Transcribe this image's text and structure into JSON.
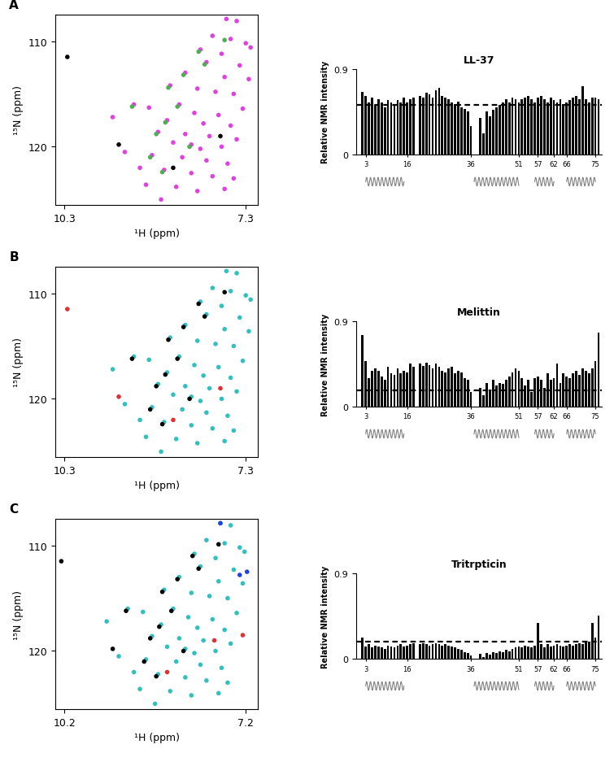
{
  "chart_data": [
    {
      "type": "scatter",
      "panel": "A",
      "xlabel": "¹H (ppm)",
      "ylabel": "¹⁵N (ppm)",
      "xlim": [
        10.45,
        7.1
      ],
      "xticks": [
        10.3,
        7.3
      ],
      "ylim": [
        125.5,
        107.5
      ],
      "yticks": [
        110,
        120
      ],
      "series": [
        {
          "color": "#e040e0",
          "marker": "o",
          "x": [
            7.62,
            7.45,
            7.85,
            7.55,
            7.3,
            7.22,
            8.05,
            7.7,
            7.95,
            7.4,
            8.3,
            7.65,
            7.25,
            8.55,
            8.1,
            7.8,
            7.5,
            9.15,
            8.9,
            8.4,
            7.35,
            8.15,
            7.75,
            9.5,
            8.6,
            8.0,
            7.55,
            8.75,
            8.3,
            7.9,
            7.45,
            8.5,
            8.2,
            8.05,
            7.7,
            9.3,
            8.85,
            8.35,
            7.95,
            7.6,
            9.05,
            8.65,
            8.2,
            7.85,
            7.5,
            8.95,
            8.45,
            8.1,
            7.65,
            8.7
          ],
          "y": [
            107.9,
            108.1,
            109.5,
            109.8,
            110.2,
            110.6,
            110.8,
            111.2,
            112.0,
            112.3,
            113.0,
            113.4,
            113.6,
            114.2,
            114.5,
            114.8,
            115.0,
            116.0,
            116.3,
            116.0,
            116.4,
            116.8,
            117.0,
            117.2,
            117.5,
            117.8,
            118.0,
            118.6,
            118.8,
            119.0,
            119.3,
            119.6,
            119.8,
            120.2,
            120.0,
            120.5,
            120.8,
            121.0,
            121.3,
            121.6,
            122.0,
            122.2,
            122.5,
            122.8,
            123.0,
            123.6,
            123.8,
            124.2,
            124.0,
            125.0
          ]
        },
        {
          "color": "#4caf50",
          "marker": "o",
          "x": [
            7.65,
            8.08,
            7.98,
            8.33,
            8.58,
            9.18,
            8.43,
            8.63,
            8.78,
            8.23,
            8.88,
            8.68
          ],
          "y": [
            109.9,
            111.0,
            112.2,
            113.2,
            114.4,
            116.2,
            116.2,
            117.7,
            118.8,
            120.0,
            121.0,
            122.4
          ]
        },
        {
          "color": "#000000",
          "marker": "o",
          "x": [
            10.25,
            8.5,
            7.72,
            9.4
          ],
          "y": [
            111.5,
            122.0,
            119.0,
            119.8
          ]
        }
      ]
    },
    {
      "type": "bar",
      "title": "LL-37",
      "ylabel": "Relative NMR intensity",
      "color": "#000000",
      "xlim": [
        0,
        77
      ],
      "xticks": [
        3,
        16,
        36,
        51,
        57,
        62,
        66,
        75
      ],
      "ylim": [
        0,
        0.9
      ],
      "yticks": [
        0,
        0.9
      ],
      "dashed_line": 0.52,
      "secondary_structure": [
        [
          3,
          15
        ],
        [
          37,
          51
        ],
        [
          56,
          62
        ],
        [
          66,
          75
        ]
      ],
      "x": [
        1,
        2,
        3,
        4,
        5,
        6,
        7,
        8,
        9,
        10,
        11,
        12,
        13,
        14,
        15,
        16,
        17,
        18,
        19,
        20,
        21,
        22,
        23,
        24,
        25,
        26,
        27,
        28,
        29,
        30,
        31,
        32,
        33,
        34,
        35,
        36,
        37,
        38,
        39,
        40,
        41,
        42,
        43,
        44,
        45,
        46,
        47,
        48,
        49,
        50,
        51,
        52,
        53,
        54,
        55,
        56,
        57,
        58,
        59,
        60,
        61,
        62,
        63,
        64,
        65,
        66,
        67,
        68,
        69,
        70,
        71,
        72,
        73,
        74,
        75,
        76
      ],
      "values": [
        null,
        0.66,
        0.62,
        0.55,
        0.6,
        0.52,
        0.58,
        0.55,
        0.5,
        0.57,
        0.55,
        0.53,
        0.57,
        0.55,
        0.6,
        0.55,
        0.58,
        0.6,
        null,
        0.62,
        0.6,
        0.65,
        0.63,
        0.6,
        0.68,
        0.7,
        0.62,
        0.6,
        0.58,
        0.55,
        0.53,
        0.56,
        0.5,
        0.48,
        0.45,
        0.3,
        null,
        null,
        0.38,
        0.22,
        0.45,
        0.4,
        0.47,
        0.5,
        0.52,
        0.55,
        0.58,
        0.55,
        0.6,
        0.58,
        0.55,
        0.58,
        0.6,
        0.62,
        0.58,
        0.55,
        0.6,
        0.62,
        0.58,
        0.55,
        0.6,
        0.57,
        0.55,
        0.58,
        0.53,
        0.55,
        0.57,
        0.6,
        0.62,
        0.58,
        0.72,
        0.58,
        0.55,
        0.6,
        0.6,
        0.58
      ]
    },
    {
      "type": "scatter",
      "panel": "B",
      "xlabel": "¹H (ppm)",
      "ylabel": "¹⁵N (ppm)",
      "xlim": [
        10.45,
        7.1
      ],
      "xticks": [
        10.3,
        7.3
      ],
      "ylim": [
        125.5,
        107.5
      ],
      "yticks": [
        110,
        120
      ],
      "series": [
        {
          "color": "#30c0c0",
          "marker": "o",
          "x": [
            7.62,
            7.45,
            7.85,
            7.55,
            7.3,
            7.22,
            8.05,
            7.7,
            7.95,
            7.4,
            8.3,
            7.65,
            7.25,
            8.55,
            8.1,
            7.8,
            7.5,
            9.15,
            8.9,
            8.4,
            7.35,
            8.15,
            7.75,
            9.5,
            8.6,
            8.0,
            7.55,
            8.75,
            8.3,
            7.9,
            7.45,
            8.5,
            8.2,
            8.05,
            7.7,
            9.3,
            8.85,
            8.35,
            7.95,
            7.6,
            9.05,
            8.65,
            8.2,
            7.85,
            7.5,
            8.95,
            8.45,
            8.1,
            7.65,
            8.7
          ],
          "y": [
            107.9,
            108.1,
            109.5,
            109.8,
            110.2,
            110.6,
            110.8,
            111.2,
            112.0,
            112.3,
            113.0,
            113.4,
            113.6,
            114.2,
            114.5,
            114.8,
            115.0,
            116.0,
            116.3,
            116.0,
            116.4,
            116.8,
            117.0,
            117.2,
            117.5,
            117.8,
            118.0,
            118.6,
            118.8,
            119.0,
            119.3,
            119.6,
            119.8,
            120.2,
            120.0,
            120.5,
            120.8,
            121.0,
            121.3,
            121.6,
            122.0,
            122.2,
            122.5,
            122.8,
            123.0,
            123.6,
            123.8,
            124.2,
            124.0,
            125.0
          ]
        },
        {
          "color": "#000000",
          "marker": "o",
          "x": [
            7.65,
            8.08,
            7.98,
            8.33,
            8.58,
            9.18,
            8.43,
            8.63,
            8.78,
            8.23,
            8.88,
            8.68
          ],
          "y": [
            109.9,
            111.0,
            112.2,
            113.2,
            114.4,
            116.2,
            116.2,
            117.7,
            118.8,
            120.0,
            121.0,
            122.4
          ]
        },
        {
          "color": "#e03030",
          "marker": "o",
          "x": [
            10.25,
            8.5,
            7.72,
            9.4
          ],
          "y": [
            111.5,
            122.0,
            119.0,
            119.8
          ]
        }
      ]
    },
    {
      "type": "bar",
      "title": "Melittin",
      "ylabel": "Relative NMR intensity",
      "color": "#000000",
      "xlim": [
        0,
        77
      ],
      "xticks": [
        3,
        16,
        36,
        51,
        57,
        62,
        66,
        75
      ],
      "ylim": [
        0,
        0.9
      ],
      "yticks": [
        0,
        0.9
      ],
      "dashed_line": 0.17,
      "secondary_structure": [
        [
          3,
          15
        ],
        [
          37,
          51
        ],
        [
          56,
          62
        ],
        [
          66,
          75
        ]
      ],
      "x": [
        1,
        2,
        3,
        4,
        5,
        6,
        7,
        8,
        9,
        10,
        11,
        12,
        13,
        14,
        15,
        16,
        17,
        18,
        19,
        20,
        21,
        22,
        23,
        24,
        25,
        26,
        27,
        28,
        29,
        30,
        31,
        32,
        33,
        34,
        35,
        36,
        37,
        38,
        39,
        40,
        41,
        42,
        43,
        44,
        45,
        46,
        47,
        48,
        49,
        50,
        51,
        52,
        53,
        54,
        55,
        56,
        57,
        58,
        59,
        60,
        61,
        62,
        63,
        64,
        65,
        66,
        67,
        68,
        69,
        70,
        71,
        72,
        73,
        74,
        75,
        76
      ],
      "values": [
        null,
        0.75,
        0.48,
        0.3,
        0.38,
        0.4,
        0.38,
        0.32,
        0.28,
        0.42,
        0.35,
        0.33,
        0.4,
        0.35,
        0.38,
        0.36,
        0.45,
        0.42,
        null,
        0.45,
        0.43,
        0.46,
        0.44,
        0.4,
        0.45,
        0.42,
        0.38,
        0.36,
        0.4,
        0.42,
        0.35,
        0.38,
        0.36,
        0.3,
        0.28,
        0.15,
        null,
        null,
        0.2,
        0.12,
        0.25,
        0.18,
        0.28,
        0.22,
        0.25,
        0.24,
        0.28,
        0.32,
        0.36,
        0.4,
        0.38,
        0.3,
        0.22,
        0.28,
        0.15,
        0.3,
        0.32,
        0.28,
        0.2,
        0.35,
        0.28,
        0.3,
        0.45,
        0.25,
        0.35,
        0.32,
        0.3,
        0.35,
        0.38,
        0.33,
        0.4,
        0.38,
        0.35,
        0.4,
        0.48,
        0.78
      ]
    },
    {
      "type": "scatter",
      "panel": "C",
      "xlabel": "¹H (ppm)",
      "ylabel": "¹⁵N (ppm)",
      "xlim": [
        10.35,
        7.0
      ],
      "xticks": [
        10.2,
        7.2
      ],
      "ylim": [
        125.5,
        107.5
      ],
      "yticks": [
        110,
        120
      ],
      "series": [
        {
          "color": "#30c0c0",
          "marker": "o",
          "x": [
            7.62,
            7.45,
            7.85,
            7.55,
            7.3,
            7.22,
            8.05,
            7.7,
            7.95,
            7.4,
            8.3,
            7.65,
            7.25,
            8.55,
            8.1,
            7.8,
            7.5,
            9.15,
            8.9,
            8.4,
            7.35,
            8.15,
            7.75,
            9.5,
            8.6,
            8.0,
            7.55,
            8.75,
            8.3,
            7.9,
            7.45,
            8.5,
            8.2,
            8.05,
            7.7,
            9.3,
            8.85,
            8.35,
            7.95,
            7.6,
            9.05,
            8.65,
            8.2,
            7.85,
            7.5,
            8.95,
            8.45,
            8.1,
            7.65,
            8.7
          ],
          "y": [
            107.9,
            108.1,
            109.5,
            109.8,
            110.2,
            110.6,
            110.8,
            111.2,
            112.0,
            112.3,
            113.0,
            113.4,
            113.6,
            114.2,
            114.5,
            114.8,
            115.0,
            116.0,
            116.3,
            116.0,
            116.4,
            116.8,
            117.0,
            117.2,
            117.5,
            117.8,
            118.0,
            118.6,
            118.8,
            119.0,
            119.3,
            119.6,
            119.8,
            120.2,
            120.0,
            120.5,
            120.8,
            121.0,
            121.3,
            121.6,
            122.0,
            122.2,
            122.5,
            122.8,
            123.0,
            123.6,
            123.8,
            124.2,
            124.0,
            125.0
          ]
        },
        {
          "color": "#000000",
          "marker": "o",
          "x": [
            7.65,
            8.08,
            7.98,
            8.33,
            8.58,
            9.18,
            8.43,
            8.63,
            8.78,
            8.23,
            8.88,
            8.68,
            10.25,
            9.4
          ],
          "y": [
            109.9,
            111.0,
            112.2,
            113.2,
            114.4,
            116.2,
            116.2,
            117.7,
            118.8,
            120.0,
            121.0,
            122.4,
            111.5,
            119.8
          ]
        },
        {
          "color": "#2040e0",
          "marker": "o",
          "x": [
            7.62,
            7.18,
            7.3
          ],
          "y": [
            107.9,
            112.5,
            112.8
          ]
        },
        {
          "color": "#e03030",
          "marker": "o",
          "x": [
            8.5,
            7.72,
            7.25
          ],
          "y": [
            122.0,
            119.0,
            118.5
          ]
        }
      ]
    },
    {
      "type": "bar",
      "title": "Tritrpticin",
      "ylabel": "Relative NMR intensity",
      "color": "#000000",
      "xlim": [
        0,
        77
      ],
      "xticks": [
        3,
        16,
        36,
        51,
        57,
        62,
        66,
        75
      ],
      "ylim": [
        0,
        0.9
      ],
      "yticks": [
        0,
        0.9
      ],
      "dashed_line": 0.18,
      "secondary_structure": [
        [
          3,
          15
        ],
        [
          37,
          51
        ],
        [
          56,
          62
        ],
        [
          66,
          75
        ]
      ],
      "x": [
        1,
        2,
        3,
        4,
        5,
        6,
        7,
        8,
        9,
        10,
        11,
        12,
        13,
        14,
        15,
        16,
        17,
        18,
        19,
        20,
        21,
        22,
        23,
        24,
        25,
        26,
        27,
        28,
        29,
        30,
        31,
        32,
        33,
        34,
        35,
        36,
        37,
        38,
        39,
        40,
        41,
        42,
        43,
        44,
        45,
        46,
        47,
        48,
        49,
        50,
        51,
        52,
        53,
        54,
        55,
        56,
        57,
        58,
        59,
        60,
        61,
        62,
        63,
        64,
        65,
        66,
        67,
        68,
        69,
        70,
        71,
        72,
        73,
        74,
        75,
        76
      ],
      "values": [
        null,
        0.22,
        0.13,
        0.15,
        0.12,
        0.14,
        0.13,
        0.12,
        0.1,
        0.14,
        0.13,
        0.12,
        0.14,
        0.15,
        0.13,
        0.14,
        0.15,
        0.16,
        null,
        0.15,
        0.16,
        0.15,
        0.14,
        0.15,
        0.16,
        0.15,
        0.14,
        0.15,
        0.14,
        0.13,
        0.12,
        0.1,
        0.09,
        0.07,
        0.06,
        0.03,
        null,
        null,
        0.05,
        0.02,
        0.06,
        0.04,
        0.07,
        0.06,
        0.08,
        0.07,
        0.09,
        0.08,
        0.1,
        0.12,
        0.13,
        0.12,
        0.14,
        0.13,
        0.12,
        0.14,
        0.38,
        0.15,
        0.12,
        0.15,
        0.13,
        0.14,
        0.15,
        0.14,
        0.13,
        0.14,
        0.15,
        0.14,
        0.15,
        0.16,
        0.15,
        0.17,
        0.18,
        0.38,
        0.22,
        0.45
      ]
    }
  ]
}
